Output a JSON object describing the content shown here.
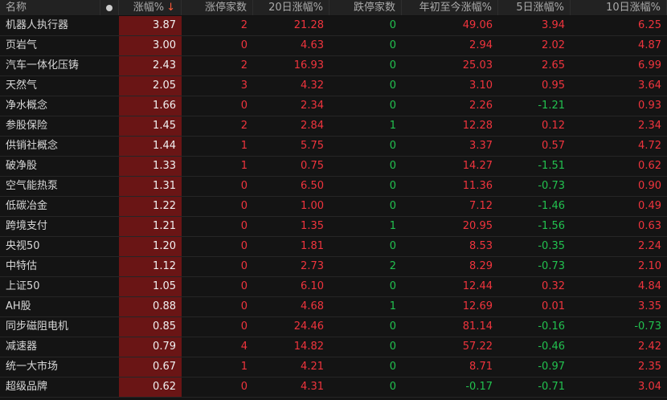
{
  "header": {
    "columns": [
      "名称",
      "",
      "涨幅%",
      "涨停家数",
      "20日涨幅%",
      "跌停家数",
      "年初至今涨幅%",
      "5日涨幅%",
      "10日涨幅%"
    ],
    "sort_icon": "arrow-down-icon",
    "sort_arrow": "↓"
  },
  "colors": {
    "up": "#f0343d",
    "down": "#22c14f",
    "highlight_bg": "#6a1515"
  },
  "rows": [
    [
      "机器人执行器",
      "3.87",
      "2",
      "21.28",
      "0",
      "49.06",
      "3.94",
      "6.25"
    ],
    [
      "页岩气",
      "3.00",
      "0",
      "4.63",
      "0",
      "2.94",
      "2.02",
      "4.87"
    ],
    [
      "汽车一体化压铸",
      "2.43",
      "2",
      "16.93",
      "0",
      "25.03",
      "2.65",
      "6.99"
    ],
    [
      "天然气",
      "2.05",
      "3",
      "4.32",
      "0",
      "3.10",
      "0.95",
      "3.64"
    ],
    [
      "净水概念",
      "1.66",
      "0",
      "2.34",
      "0",
      "2.26",
      "-1.21",
      "0.93"
    ],
    [
      "参股保险",
      "1.45",
      "2",
      "2.84",
      "1",
      "12.28",
      "0.12",
      "2.34"
    ],
    [
      "供销社概念",
      "1.44",
      "1",
      "5.75",
      "0",
      "3.37",
      "0.57",
      "4.72"
    ],
    [
      "破净股",
      "1.33",
      "1",
      "0.75",
      "0",
      "14.27",
      "-1.51",
      "0.62"
    ],
    [
      "空气能热泵",
      "1.31",
      "0",
      "6.50",
      "0",
      "11.36",
      "-0.73",
      "0.90"
    ],
    [
      "低碳冶金",
      "1.22",
      "0",
      "1.00",
      "0",
      "7.12",
      "-1.46",
      "0.49"
    ],
    [
      "跨境支付",
      "1.21",
      "0",
      "1.35",
      "1",
      "20.95",
      "-1.56",
      "0.63"
    ],
    [
      "央视50",
      "1.20",
      "0",
      "1.81",
      "0",
      "8.53",
      "-0.35",
      "2.24"
    ],
    [
      "中特估",
      "1.12",
      "0",
      "2.73",
      "2",
      "8.29",
      "-0.73",
      "2.10"
    ],
    [
      "上证50",
      "1.05",
      "0",
      "6.10",
      "0",
      "12.44",
      "0.32",
      "4.84"
    ],
    [
      "AH股",
      "0.88",
      "0",
      "4.68",
      "1",
      "12.69",
      "0.01",
      "3.35"
    ],
    [
      "同步磁阻电机",
      "0.85",
      "0",
      "24.46",
      "0",
      "81.14",
      "-0.16",
      "-0.73"
    ],
    [
      "减速器",
      "0.79",
      "4",
      "14.82",
      "0",
      "57.22",
      "-0.46",
      "2.42"
    ],
    [
      "统一大市场",
      "0.67",
      "1",
      "4.21",
      "0",
      "8.71",
      "-0.97",
      "2.35"
    ],
    [
      "超级品牌",
      "0.62",
      "0",
      "4.31",
      "0",
      "-0.17",
      "-0.71",
      "3.04"
    ]
  ]
}
